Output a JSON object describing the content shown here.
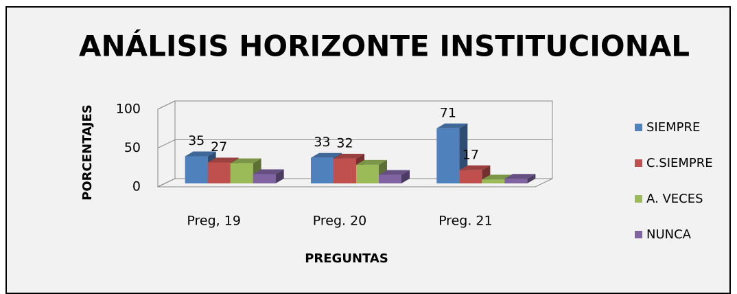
{
  "chart_data": {
    "type": "bar3d",
    "title": "ANÁLISIS HORIZONTE INSTITUCIONAL",
    "x_label": "PREGUNTAS",
    "y_label": "PORCENTAJES",
    "categories": [
      "Preg, 19",
      "Preg. 20",
      "Preg. 21"
    ],
    "series": [
      {
        "name": "SIEMPRE",
        "color": "#4f81bd",
        "values": [
          35,
          33,
          71
        ],
        "show_labels": true
      },
      {
        "name": "C.SIEMPRE",
        "color": "#c0504d",
        "values": [
          27,
          32,
          17
        ],
        "show_labels": true
      },
      {
        "name": "A. VECES",
        "color": "#9bbb59",
        "values": [
          26,
          24,
          5
        ],
        "show_labels": false
      },
      {
        "name": "NUNCA",
        "color": "#8064a2",
        "values": [
          12,
          11,
          6
        ],
        "show_labels": false
      }
    ],
    "ylim": [
      0,
      100
    ],
    "yticks": [
      0,
      50,
      100
    ],
    "grid": true,
    "legend": "right"
  }
}
